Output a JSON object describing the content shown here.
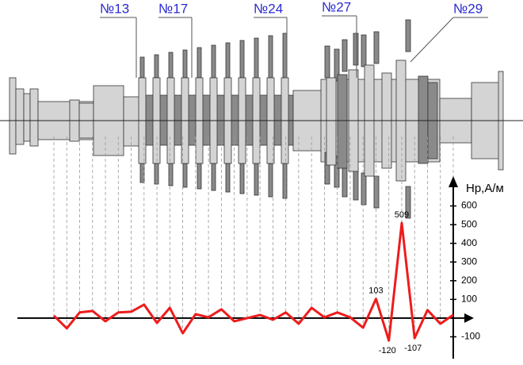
{
  "chart_data": {
    "type": "line",
    "stage_labels": [
      "№13",
      "№17",
      "№24",
      "№27",
      "№29"
    ],
    "y_axis_label": "Нр,А/м",
    "categories": [
      null,
      null,
      null,
      null,
      null,
      null,
      null,
      null,
      null,
      null,
      null,
      null,
      null,
      null,
      null,
      null,
      null,
      null,
      null,
      null,
      null,
      null,
      null,
      null,
      null,
      null,
      null,
      null,
      null,
      null,
      null,
      null
    ],
    "series": [
      {
        "color": "#ee1c1c",
        "values": [
          13,
          -55,
          30,
          38,
          -17,
          30,
          34,
          72,
          -26,
          55,
          -81,
          21,
          4,
          47,
          -17,
          0,
          17,
          -9,
          30,
          -30,
          55,
          4,
          30,
          4,
          -51,
          103,
          -120,
          509,
          -107,
          43,
          -30,
          17
        ],
        "value_labels": [
          null,
          null,
          null,
          null,
          null,
          null,
          null,
          null,
          null,
          null,
          null,
          null,
          null,
          null,
          null,
          null,
          null,
          null,
          null,
          null,
          null,
          null,
          null,
          null,
          null,
          "103",
          "-120",
          "509",
          "-107",
          null,
          null,
          null
        ]
      }
    ],
    "ylim": [
      -200,
      700
    ],
    "yticks": [
      -100,
      100,
      200,
      300,
      400,
      500,
      600
    ]
  }
}
